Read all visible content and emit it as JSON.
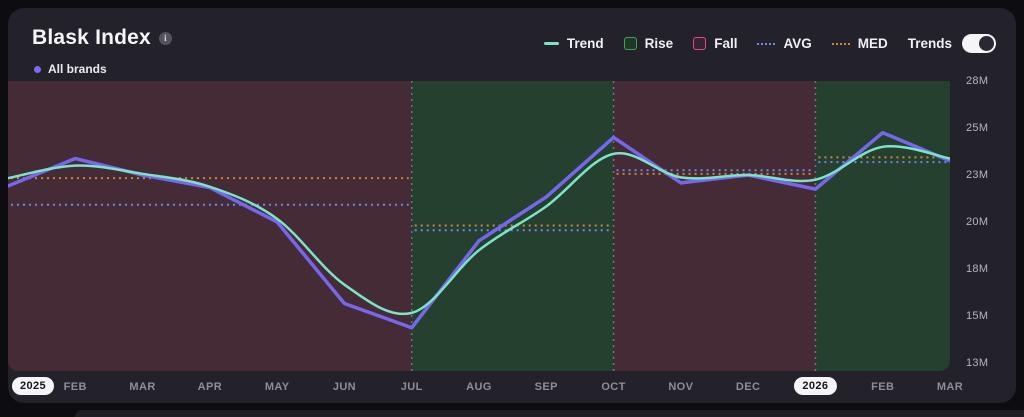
{
  "header": {
    "title": "Blask Index",
    "info_icon": "i",
    "series_label": "All brands",
    "series_dot_color": "#7b6cf2",
    "legend": [
      {
        "id": "trend",
        "label": "Trend",
        "color": "#7de3c6"
      },
      {
        "id": "rise",
        "label": "Rise",
        "color": "#3fa059"
      },
      {
        "id": "fall",
        "label": "Fall",
        "color": "#cf4f8e"
      },
      {
        "id": "avg",
        "label": "AVG",
        "color": "#6d86f2"
      },
      {
        "id": "med",
        "label": "MED",
        "color": "#c8893a"
      }
    ],
    "toggle": {
      "label": "Trends",
      "state": "on"
    }
  },
  "chart_data": {
    "type": "line",
    "title": "Blask Index",
    "unit": "M",
    "x_labels": [
      {
        "text": "2025",
        "pill": true
      },
      {
        "text": "FEB"
      },
      {
        "text": "MAR"
      },
      {
        "text": "APR"
      },
      {
        "text": "MAY"
      },
      {
        "text": "JUN"
      },
      {
        "text": "JUL"
      },
      {
        "text": "AUG"
      },
      {
        "text": "SEP"
      },
      {
        "text": "OCT"
      },
      {
        "text": "NOV"
      },
      {
        "text": "DEC"
      },
      {
        "text": "2026",
        "pill": true
      },
      {
        "text": "FEB"
      },
      {
        "text": "MAR"
      }
    ],
    "y_ticks": [
      "28M",
      "25M",
      "23M",
      "20M",
      "18M",
      "15M",
      "13M"
    ],
    "y_tick_values": [
      28,
      25,
      23,
      20,
      18,
      15,
      13
    ],
    "series": [
      {
        "name": "All brands",
        "style": "linear",
        "color": "#7667ed",
        "values": [
          22.3,
          23.7,
          23.0,
          22.2,
          20.0,
          15.8,
          14.5,
          19.2,
          21.6,
          24.6,
          22.5,
          23.0,
          22.1,
          24.8,
          23.6
        ]
      },
      {
        "name": "Trend",
        "style": "smooth",
        "color": "#7de3c6",
        "values": [
          22.8,
          23.4,
          23.05,
          22.25,
          20.2,
          17.0,
          15.2,
          18.8,
          21.0,
          23.9,
          22.85,
          23.0,
          22.7,
          24.2,
          23.7
        ]
      }
    ],
    "regions": [
      {
        "kind": "fall",
        "from": 0,
        "to": 6,
        "avg": 21.1,
        "med": 22.8
      },
      {
        "kind": "rise",
        "from": 6,
        "to": 9,
        "avg": 19.65,
        "med": 19.85
      },
      {
        "kind": "fall",
        "from": 9,
        "to": 12,
        "avg": 23.2,
        "med": 23.05
      },
      {
        "kind": "rise",
        "from": 12,
        "to": 14,
        "avg": 23.55,
        "med": 23.75
      }
    ],
    "colors": {
      "fall_bg": "#452b36",
      "rise_bg": "#25402e",
      "avg": "#6d86f2",
      "med": "#c8893a",
      "boundary": "#a9c2af"
    },
    "legend_position": "top-right",
    "grid": false
  }
}
